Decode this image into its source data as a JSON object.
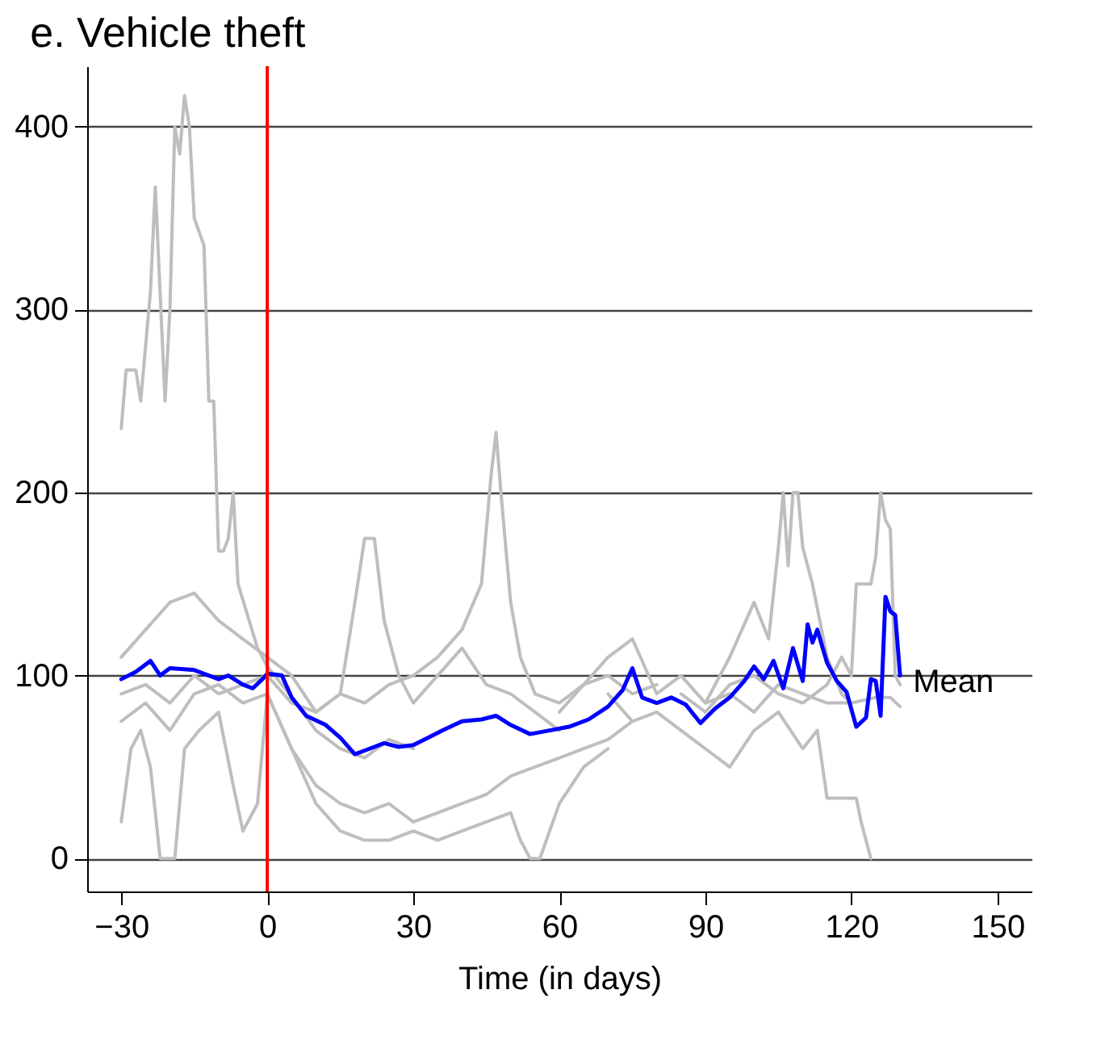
{
  "chart_data": {
    "type": "line",
    "title": "e. Vehicle theft",
    "xlabel": "Time (in days)",
    "xlim": [
      -37,
      157
    ],
    "xticks": [
      -30,
      0,
      30,
      60,
      90,
      120,
      150
    ],
    "ylim": [
      -18,
      433
    ],
    "yticks": [
      0,
      100,
      200,
      300,
      400
    ],
    "grid": "y",
    "legend": false,
    "ref_lines": [
      {
        "axis": "x",
        "value": 0,
        "color": "#ff0000"
      }
    ],
    "series": [
      {
        "color": "#bebebe",
        "x": [
          -30,
          -29,
          -27,
          -26,
          -24,
          -23,
          -21,
          -20,
          -19,
          -18,
          -17,
          -16,
          -15,
          -13,
          -12,
          -11,
          -10,
          -9,
          -8,
          -7,
          -6,
          -2,
          0,
          3,
          6,
          10,
          15,
          20,
          25,
          30
        ],
        "values": [
          235,
          267,
          267,
          250,
          310,
          367,
          250,
          300,
          400,
          385,
          417,
          400,
          350,
          335,
          250,
          250,
          168,
          168,
          175,
          200,
          150,
          115,
          105,
          95,
          85,
          70,
          60,
          55,
          65,
          60
        ]
      },
      {
        "color": "#bebebe",
        "x": [
          -30,
          -25,
          -20,
          -15,
          -10,
          -5,
          0,
          5,
          10,
          15,
          20,
          25,
          30,
          35,
          40,
          44,
          46,
          47,
          48,
          50,
          52,
          55,
          60,
          65,
          70,
          75,
          80
        ],
        "values": [
          90,
          95,
          85,
          100,
          90,
          95,
          100,
          85,
          80,
          90,
          85,
          95,
          100,
          110,
          125,
          150,
          210,
          233,
          200,
          140,
          110,
          90,
          85,
          95,
          100,
          90,
          95
        ]
      },
      {
        "color": "#bebebe",
        "x": [
          -30,
          -25,
          -20,
          -15,
          -10,
          -5,
          0,
          5,
          10,
          15,
          18,
          20,
          22,
          24,
          27,
          30,
          35,
          40,
          45,
          50,
          55,
          60
        ],
        "values": [
          110,
          125,
          140,
          145,
          130,
          120,
          110,
          100,
          80,
          90,
          140,
          175,
          175,
          130,
          100,
          85,
          100,
          115,
          95,
          90,
          80,
          70
        ]
      },
      {
        "color": "#bebebe",
        "x": [
          -30,
          -28,
          -26,
          -24,
          -22,
          -19,
          -17,
          -14,
          -10,
          -7,
          -5,
          -2,
          0,
          5,
          10,
          15,
          20,
          25,
          30,
          35,
          40,
          45,
          50,
          52,
          54,
          56,
          60,
          65,
          70
        ],
        "values": [
          20,
          60,
          70,
          50,
          0,
          0,
          60,
          70,
          80,
          40,
          15,
          30,
          90,
          60,
          30,
          15,
          10,
          10,
          15,
          10,
          15,
          20,
          25,
          10,
          0,
          0,
          30,
          50,
          60
        ]
      },
      {
        "color": "#bebebe",
        "x": [
          60,
          65,
          70,
          75,
          80,
          85,
          90,
          95,
          100,
          103,
          105,
          106,
          107,
          108,
          109,
          110,
          112,
          115,
          118,
          120
        ],
        "values": [
          80,
          95,
          110,
          120,
          90,
          100,
          85,
          110,
          140,
          120,
          170,
          200,
          160,
          200,
          200,
          170,
          150,
          110,
          90,
          85
        ]
      },
      {
        "color": "#bebebe",
        "x": [
          70,
          75,
          80,
          85,
          90,
          95,
          100,
          105,
          110,
          113,
          115,
          118,
          121,
          122,
          124
        ],
        "values": [
          90,
          75,
          80,
          70,
          60,
          50,
          70,
          80,
          60,
          70,
          33,
          33,
          33,
          20,
          0
        ]
      },
      {
        "color": "#bebebe",
        "x": [
          85,
          90,
          95,
          100,
          105,
          110,
          115,
          118,
          120,
          121,
          124,
          125,
          126,
          127,
          128,
          129,
          130
        ],
        "values": [
          90,
          80,
          95,
          100,
          90,
          85,
          95,
          110,
          100,
          150,
          150,
          165,
          200,
          185,
          180,
          100,
          95
        ]
      },
      {
        "color": "#bebebe",
        "x": [
          90,
          95,
          100,
          105,
          110,
          115,
          120,
          125,
          128,
          130
        ],
        "values": [
          85,
          90,
          80,
          95,
          90,
          85,
          85,
          88,
          88,
          83
        ]
      },
      {
        "color": "#bebebe",
        "x": [
          -30,
          -25,
          -20,
          -15,
          -10,
          -5,
          0,
          5,
          10,
          15,
          20,
          25,
          30,
          35,
          40,
          45,
          50,
          55,
          60,
          65,
          70,
          75
        ],
        "values": [
          75,
          85,
          70,
          90,
          95,
          85,
          90,
          60,
          40,
          30,
          25,
          30,
          20,
          25,
          30,
          35,
          45,
          50,
          55,
          60,
          65,
          75
        ]
      },
      {
        "name": "Mean",
        "color": "#0000ff",
        "x": [
          -30,
          -27,
          -24,
          -22,
          -20,
          -15,
          -10,
          -8,
          -5,
          -3,
          -1,
          0,
          3,
          5,
          8,
          12,
          15,
          18,
          21,
          24,
          27,
          30,
          33,
          36,
          40,
          44,
          47,
          50,
          54,
          58,
          62,
          66,
          70,
          73,
          75,
          77,
          80,
          83,
          86,
          89,
          92,
          95,
          98,
          100,
          102,
          104,
          106,
          108,
          110,
          111,
          112,
          113,
          115,
          117,
          119,
          121,
          123,
          124,
          125,
          126,
          127,
          128,
          129,
          130
        ],
        "values": [
          98,
          102,
          108,
          100,
          104,
          103,
          98,
          100,
          95,
          93,
          98,
          101,
          100,
          88,
          78,
          73,
          66,
          57,
          60,
          63,
          61,
          62,
          66,
          70,
          75,
          76,
          78,
          73,
          68,
          70,
          72,
          76,
          83,
          92,
          104,
          88,
          85,
          88,
          84,
          74,
          82,
          88,
          97,
          105,
          98,
          108,
          93,
          115,
          97,
          128,
          118,
          125,
          107,
          97,
          91,
          72,
          77,
          98,
          97,
          78,
          143,
          135,
          133,
          100
        ]
      }
    ]
  }
}
